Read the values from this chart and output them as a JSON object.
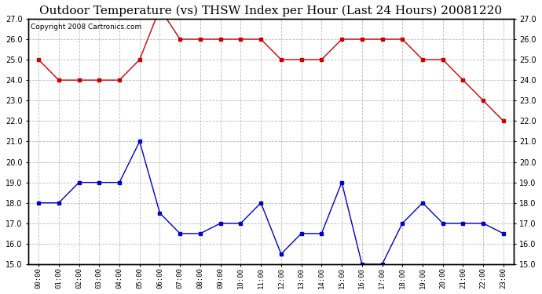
{
  "title": "Outdoor Temperature (vs) THSW Index per Hour (Last 24 Hours) 20081220",
  "copyright": "Copyright 2008 Cartronics.com",
  "hours": [
    "00:00",
    "01:00",
    "02:00",
    "03:00",
    "04:00",
    "05:00",
    "06:00",
    "07:00",
    "08:00",
    "09:00",
    "10:00",
    "11:00",
    "12:00",
    "13:00",
    "14:00",
    "15:00",
    "16:00",
    "17:00",
    "18:00",
    "19:00",
    "20:00",
    "21:00",
    "22:00",
    "23:00"
  ],
  "blue_data": [
    18.0,
    18.0,
    19.0,
    19.0,
    19.0,
    21.0,
    17.5,
    16.5,
    16.5,
    17.0,
    17.0,
    18.0,
    15.5,
    16.5,
    16.5,
    19.0,
    15.0,
    15.0,
    17.0,
    18.0,
    17.0,
    17.0,
    17.0,
    16.5
  ],
  "red_data": [
    25.0,
    24.0,
    24.0,
    24.0,
    24.0,
    25.0,
    27.5,
    26.0,
    26.0,
    26.0,
    26.0,
    26.0,
    25.0,
    25.0,
    25.0,
    26.0,
    26.0,
    26.0,
    26.0,
    25.0,
    25.0,
    24.0,
    23.0,
    22.0
  ],
  "ylim": [
    15.0,
    27.0
  ],
  "yticks": [
    15.0,
    16.0,
    17.0,
    18.0,
    19.0,
    20.0,
    21.0,
    22.0,
    23.0,
    24.0,
    25.0,
    26.0,
    27.0
  ],
  "blue_color": "#0000cc",
  "red_color": "#cc0000",
  "grid_color": "#bbbbbb",
  "bg_color": "#ffffff",
  "title_fontsize": 11,
  "copyright_fontsize": 6.5
}
